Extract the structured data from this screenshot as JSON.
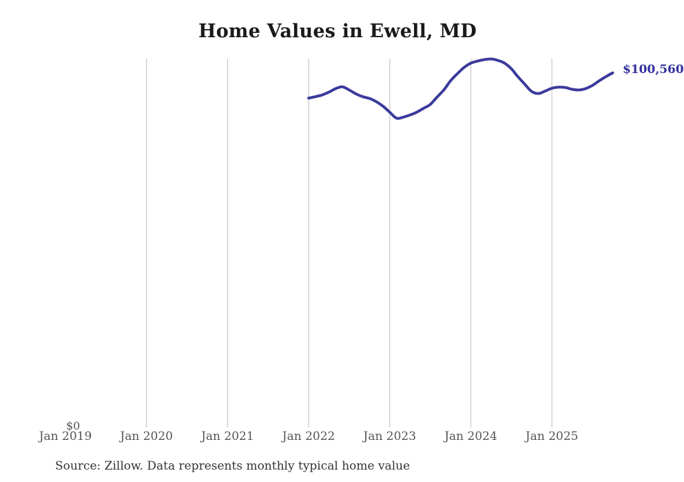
{
  "chart": {
    "title": "Home Values in Ewell, MD",
    "y_zero_label": "$0",
    "end_label": "$100,560",
    "source": "Source: Zillow. Data represents monthly typical home value"
  },
  "colors": {
    "line": "#3b3a9c",
    "grid": "#cccccc",
    "axis_text": "#555555",
    "title_text": "#1a1a1a",
    "end_label_text": "#31319b",
    "source_text": "#333333"
  },
  "chart_data": {
    "type": "line",
    "title": "Home Values in Ewell, MD",
    "xlabel": "",
    "ylabel": "",
    "ylim": [
      0,
      104600
    ],
    "grid": "vertical-only",
    "legend": "none",
    "x_ticks": [
      {
        "label": "Jan 2019",
        "year": 2019,
        "gridline": false
      },
      {
        "label": "Jan 2020",
        "year": 2020,
        "gridline": true
      },
      {
        "label": "Jan 2021",
        "year": 2021,
        "gridline": true
      },
      {
        "label": "Jan 2022",
        "year": 2022,
        "gridline": true
      },
      {
        "label": "Jan 2023",
        "year": 2023,
        "gridline": true
      },
      {
        "label": "Jan 2024",
        "year": 2024,
        "gridline": true
      },
      {
        "label": "Jan 2025",
        "year": 2025,
        "gridline": true
      }
    ],
    "series": [
      {
        "name": "Monthly typical home value",
        "x": [
          "2022-01",
          "2022-02",
          "2022-03",
          "2022-04",
          "2022-05",
          "2022-06",
          "2022-07",
          "2022-08",
          "2022-09",
          "2022-10",
          "2022-11",
          "2022-12",
          "2023-01",
          "2023-02",
          "2023-03",
          "2023-04",
          "2023-05",
          "2023-06",
          "2023-07",
          "2023-08",
          "2023-09",
          "2023-10",
          "2023-11",
          "2023-12",
          "2024-01",
          "2024-02",
          "2024-03",
          "2024-04",
          "2024-05",
          "2024-06",
          "2024-07",
          "2024-08",
          "2024-09",
          "2024-10",
          "2024-11",
          "2024-12",
          "2025-01",
          "2025-02",
          "2025-03",
          "2025-04",
          "2025-05",
          "2025-06",
          "2025-07",
          "2025-08",
          "2025-09",
          "2025-10"
        ],
        "values": [
          93400,
          93800,
          94300,
          95100,
          96100,
          96600,
          95700,
          94600,
          93800,
          93300,
          92400,
          91100,
          89400,
          87700,
          88000,
          88600,
          89400,
          90500,
          91600,
          93700,
          95700,
          98300,
          100300,
          102100,
          103300,
          103900,
          104300,
          104500,
          104100,
          103300,
          101700,
          99400,
          97300,
          95300,
          94700,
          95400,
          96200,
          96500,
          96400,
          95900,
          95700,
          96100,
          97000,
          98300,
          99500,
          100560
        ]
      }
    ],
    "final_value_annotation": "$100,560"
  }
}
